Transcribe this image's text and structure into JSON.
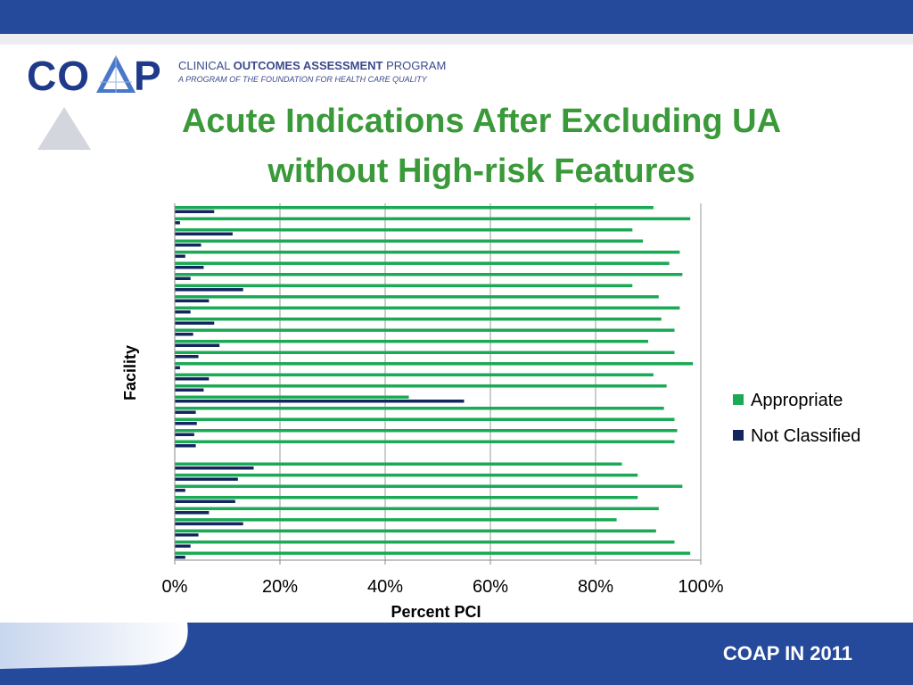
{
  "header": {
    "logo_text_co": "CO",
    "logo_text_p": "P",
    "logo_line1_prefix": "CLINICAL ",
    "logo_line1_bold": "OUTCOMES ASSESSMENT",
    "logo_line1_suffix": " PROGRAM",
    "logo_line2": "A PROGRAM OF THE FOUNDATION FOR HEALTH CARE QUALITY"
  },
  "slide": {
    "title_line1": "Acute Indications After Excluding UA",
    "title_line2": "without High-risk Features"
  },
  "footer": {
    "text": "COAP IN 2011"
  },
  "colors": {
    "appropriate": "#1aaa55",
    "not_classified": "#13265e",
    "brand_blue": "#254a9c",
    "title_green": "#3a9a3a"
  },
  "chart_data": {
    "type": "bar",
    "orientation": "horizontal",
    "xlabel": "Percent PCI",
    "ylabel": "Facility",
    "xlim": [
      0,
      100
    ],
    "x_ticks": [
      "0%",
      "20%",
      "40%",
      "60%",
      "80%",
      "100%"
    ],
    "legend_position": "right",
    "gridlines": "vertical",
    "series": [
      {
        "name": "Appropriate",
        "values": [
          91,
          98,
          87,
          89,
          96,
          94,
          96.5,
          87,
          92,
          96,
          92.5,
          95,
          90,
          95,
          98.5,
          91,
          93.5,
          44.5,
          93,
          95,
          95.5,
          95,
          null,
          85,
          88,
          96.5,
          88,
          92,
          84,
          91.5,
          95,
          98
        ]
      },
      {
        "name": "Not Classified",
        "values": [
          7.5,
          1,
          11,
          5,
          2,
          5.5,
          3,
          13,
          6.5,
          3,
          7.5,
          3.5,
          8.5,
          4.5,
          1,
          6.5,
          5.5,
          55,
          4,
          4.2,
          3.7,
          4,
          null,
          15,
          12,
          2,
          11.5,
          6.5,
          13,
          4.5,
          3,
          2
        ]
      }
    ]
  }
}
